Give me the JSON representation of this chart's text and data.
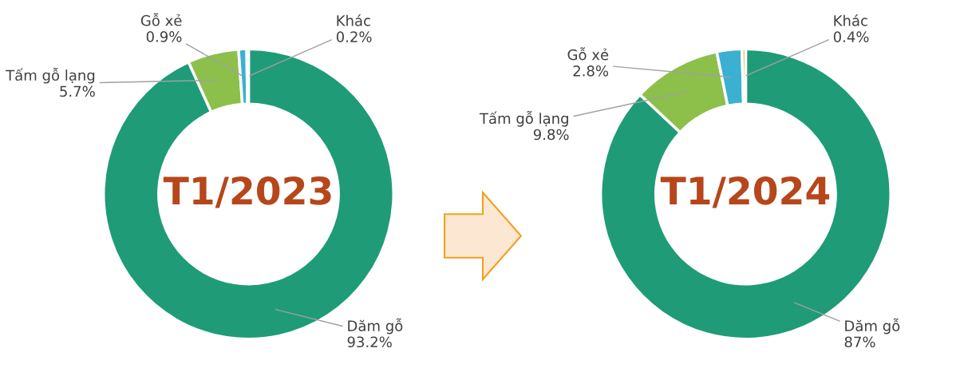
{
  "chart_data": [
    {
      "type": "donut",
      "title": "T1/2023",
      "categories": [
        "Dăm gỗ",
        "Tấm gỗ lạng",
        "Gỗ xẻ",
        "Khác"
      ],
      "values": [
        93.2,
        5.7,
        0.9,
        0.2
      ],
      "colors": [
        "#1f9b78",
        "#8cc04b",
        "#3bb0d0",
        "#f0a030"
      ],
      "value_labels": [
        "93.2%",
        "5.7%",
        "0.9%",
        "0.2%"
      ]
    },
    {
      "type": "donut",
      "title": "T1/2024",
      "categories": [
        "Dăm gỗ",
        "Tấm gỗ lạng",
        "Gỗ xẻ",
        "Khác"
      ],
      "values": [
        87,
        9.8,
        2.8,
        0.4
      ],
      "colors": [
        "#1f9b78",
        "#8cc04b",
        "#3bb0d0",
        "#f0a030"
      ],
      "value_labels": [
        "87%",
        "9.8%",
        "2.8%",
        "0.4%"
      ]
    }
  ]
}
